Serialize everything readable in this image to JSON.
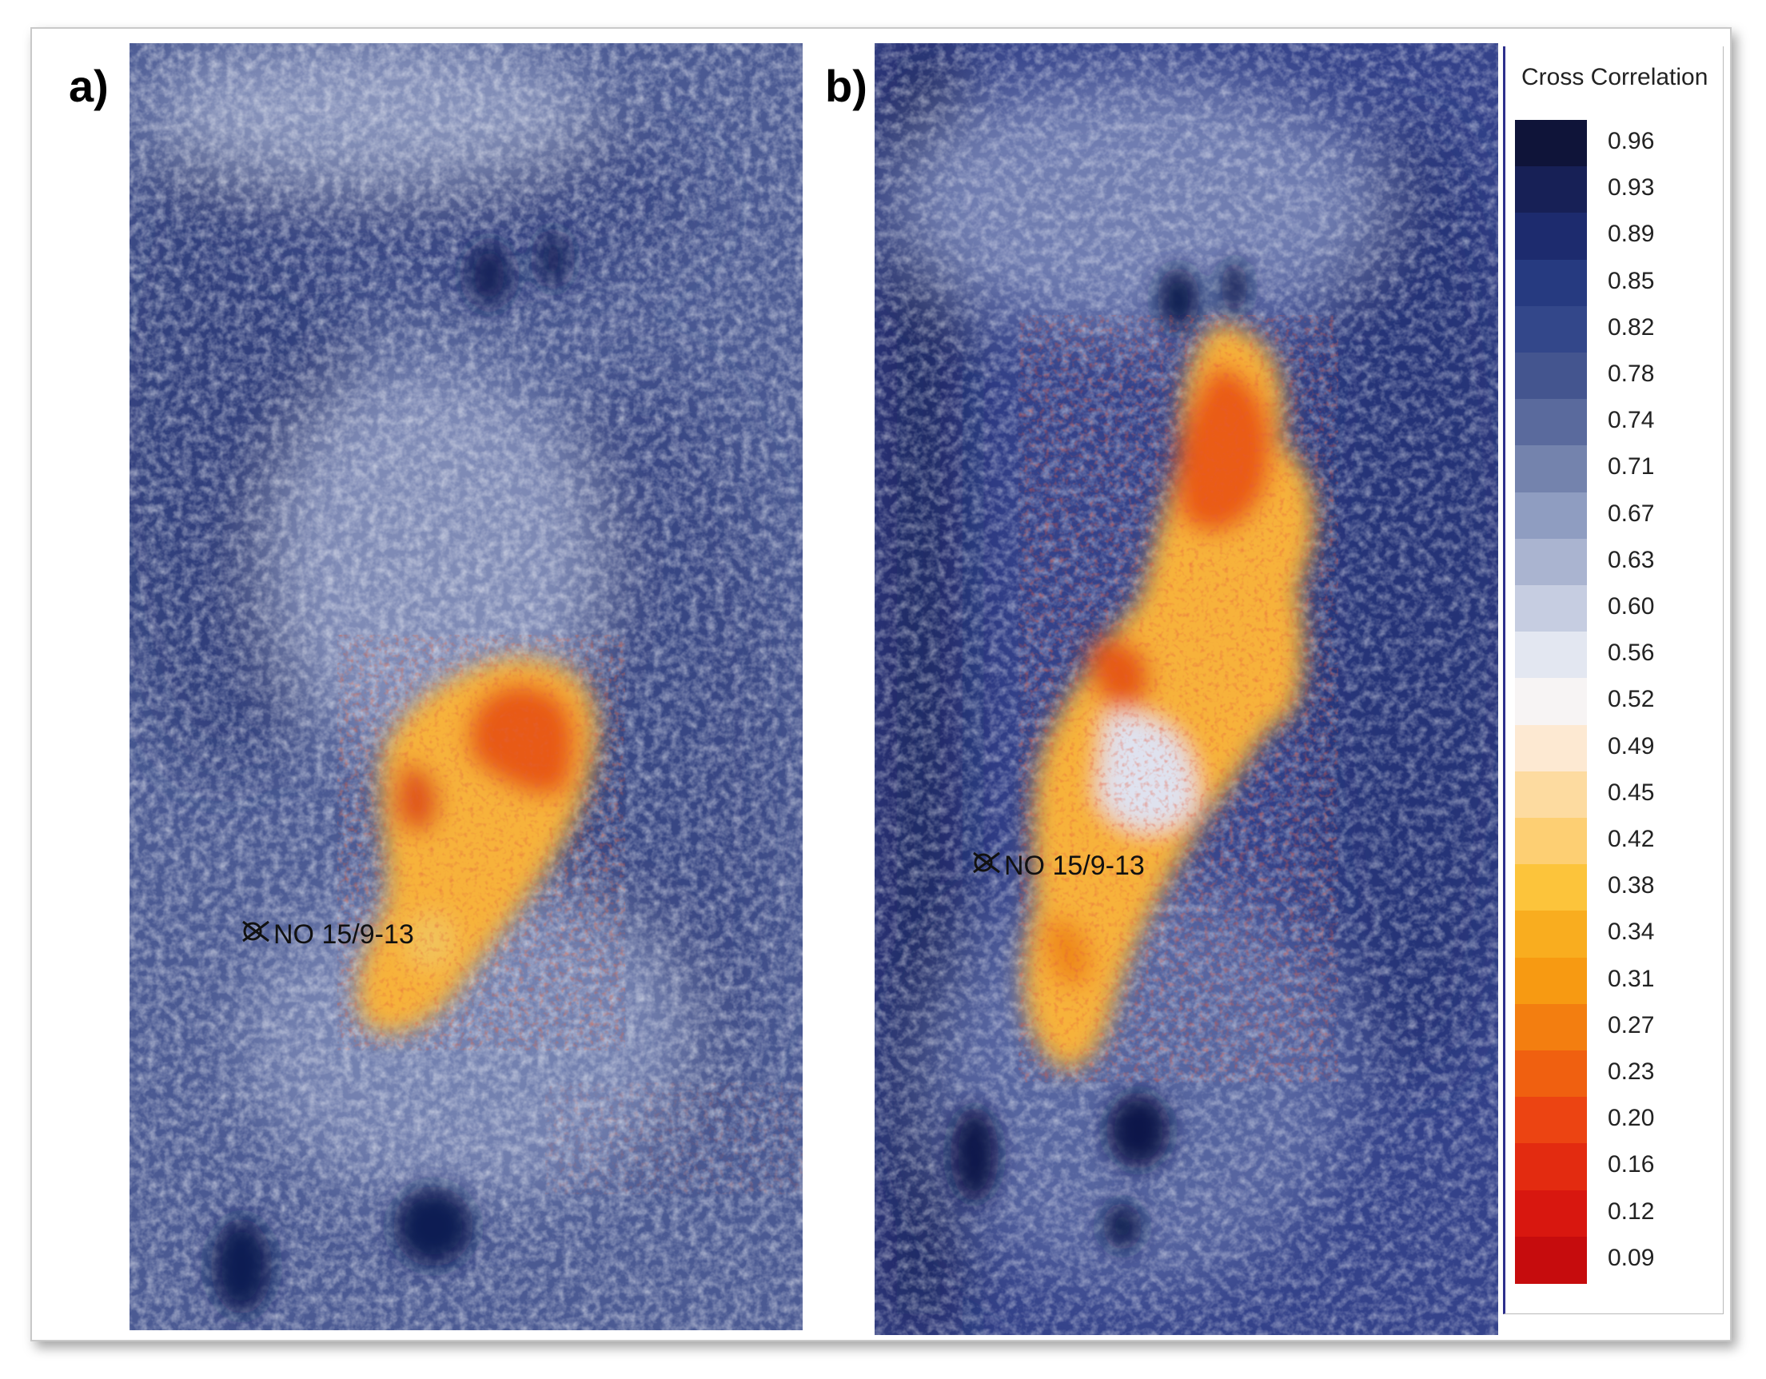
{
  "panels": [
    {
      "label": "a)",
      "well_label": "NO 15/9-13"
    },
    {
      "label": "b)",
      "well_label": "NO 15/9-13"
    }
  ],
  "legend": {
    "title": "Cross Correlation",
    "ticks": [
      "0.96",
      "0.93",
      "0.89",
      "0.85",
      "0.82",
      "0.78",
      "0.74",
      "0.71",
      "0.67",
      "0.63",
      "0.60",
      "0.56",
      "0.52",
      "0.49",
      "0.45",
      "0.42",
      "0.38",
      "0.34",
      "0.31",
      "0.27",
      "0.23",
      "0.20",
      "0.16",
      "0.12",
      "0.09"
    ],
    "colors": [
      "#0f1439",
      "#172056",
      "#1d2b6e",
      "#263a80",
      "#33478a",
      "#44558f",
      "#5a6a9d",
      "#7483ad",
      "#8f9dc1",
      "#aab4d0",
      "#c6cde1",
      "#e3e7f1",
      "#f7f4f4",
      "#fde9d2",
      "#fddba0",
      "#fdcf73",
      "#fcc43b",
      "#f9ad1f",
      "#f79a12",
      "#f37e10",
      "#f06010",
      "#ec4412",
      "#e32b10",
      "#d8170f",
      "#c60c0d"
    ],
    "icon": "well-symbol-icon"
  }
}
